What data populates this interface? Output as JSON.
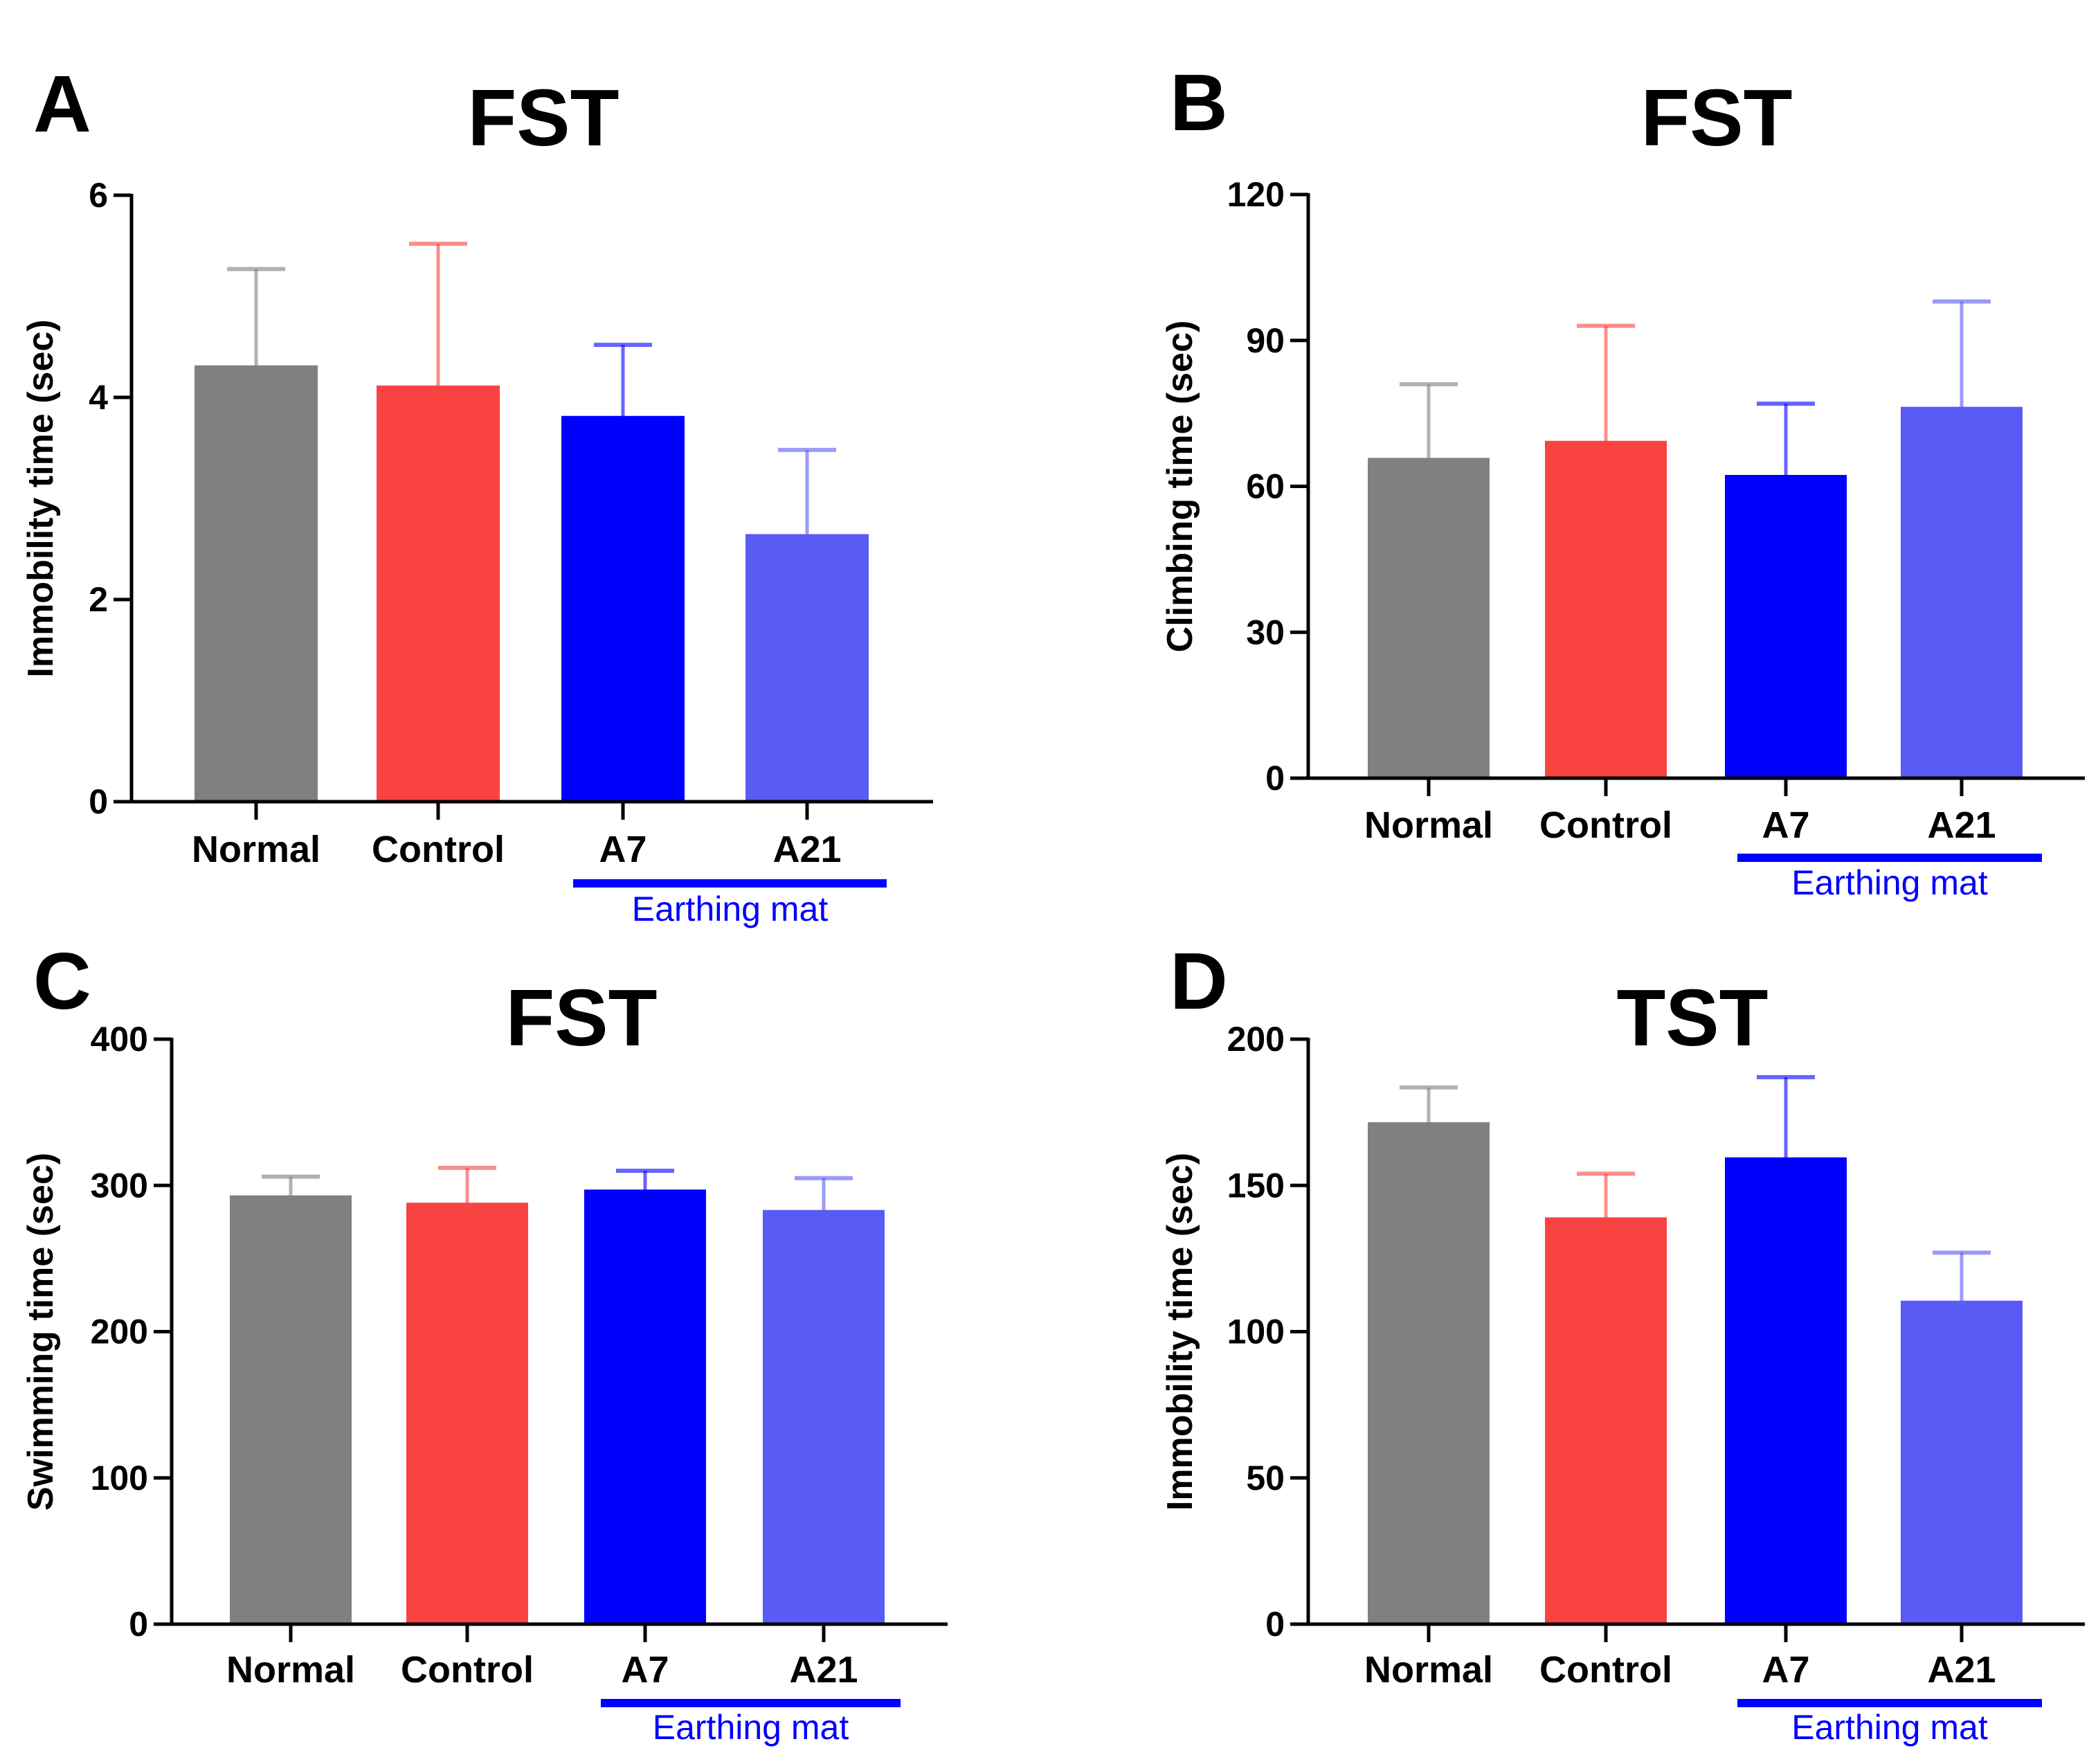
{
  "chart_data": [
    {
      "panel": "A",
      "type": "bar",
      "title": "FST",
      "ylabel": "Immobility time (sec)",
      "xlabel": "",
      "ylim": [
        0,
        6
      ],
      "yticks": [
        0,
        2,
        4,
        6
      ],
      "categories": [
        "Normal",
        "Control",
        "A7",
        "A21"
      ],
      "values": [
        4.3,
        4.1,
        3.8,
        2.63
      ],
      "errors": [
        0.97,
        1.42,
        0.72,
        0.85
      ],
      "colors": [
        "#808080",
        "#f94343",
        "#0000ff",
        "#5a5af5"
      ],
      "bracket": {
        "label": "Earthing mat",
        "categories": [
          "A7",
          "A21"
        ],
        "color": "#0000ff"
      }
    },
    {
      "panel": "B",
      "type": "bar",
      "title": "FST",
      "ylabel": "Climbing time (sec)",
      "xlabel": "",
      "ylim": [
        0,
        120
      ],
      "yticks": [
        0,
        30,
        60,
        90,
        120
      ],
      "categories": [
        "Normal",
        "Control",
        "A7",
        "A21"
      ],
      "values": [
        65.5,
        69,
        62,
        76
      ],
      "errors": [
        15.5,
        24,
        15,
        22
      ],
      "colors": [
        "#808080",
        "#f94343",
        "#0000ff",
        "#5a5af5"
      ],
      "bracket": {
        "label": "Earthing mat",
        "categories": [
          "A7",
          "A21"
        ],
        "color": "#0000ff"
      }
    },
    {
      "panel": "C",
      "type": "bar",
      "title": "FST",
      "ylabel": "Swimming time (sec)",
      "xlabel": "",
      "ylim": [
        0,
        400
      ],
      "yticks": [
        0,
        100,
        200,
        300,
        400
      ],
      "categories": [
        "Normal",
        "Control",
        "A7",
        "A21"
      ],
      "values": [
        292,
        287,
        296,
        282
      ],
      "errors": [
        14,
        25,
        14,
        23
      ],
      "colors": [
        "#808080",
        "#f94343",
        "#0000ff",
        "#5a5af5"
      ],
      "bracket": {
        "label": "Earthing mat",
        "categories": [
          "A7",
          "A21"
        ],
        "color": "#0000ff"
      }
    },
    {
      "panel": "D",
      "type": "bar",
      "title": "TST",
      "ylabel": "Immobility time (sec)",
      "xlabel": "",
      "ylim": [
        0,
        200
      ],
      "yticks": [
        0,
        50,
        100,
        150,
        200
      ],
      "categories": [
        "Normal",
        "Control",
        "A7",
        "A21"
      ],
      "values": [
        171,
        138.5,
        159,
        110
      ],
      "errors": [
        12.5,
        15.5,
        28,
        17
      ],
      "colors": [
        "#808080",
        "#f94343",
        "#0000ff",
        "#5a5af5"
      ],
      "bracket": {
        "label": "Earthing mat",
        "categories": [
          "A7",
          "A21"
        ],
        "color": "#0000ff"
      }
    }
  ]
}
